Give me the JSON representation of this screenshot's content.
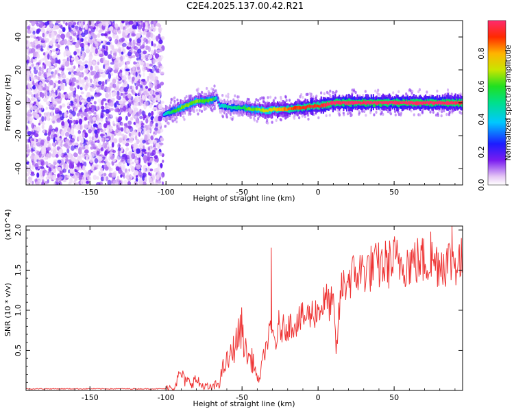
{
  "title": "C2E4.2025.137.00.42.R21",
  "chart_data": [
    {
      "type": "heatmap",
      "name": "spectrogram",
      "xlabel": "Height of straight line (km)",
      "ylabel": "Frequency (Hz)",
      "xlim": [
        -192,
        95
      ],
      "ylim": [
        -50,
        50
      ],
      "x_ticks": [
        "-150",
        "-100",
        "-50",
        "0",
        "50"
      ],
      "y_ticks": [
        "-40",
        "-20",
        "0",
        "20",
        "40"
      ],
      "colorbar": {
        "label": "Normalized spectral amplitude",
        "range": [
          0.0,
          1.0
        ],
        "ticks": [
          "0.0",
          "0.2",
          "0.4",
          "0.6",
          "0.8"
        ]
      },
      "noise_region_x": [
        -192,
        -102
      ],
      "signal_ridge": {
        "x": [
          -102,
          -95,
          -90,
          -85,
          -80,
          -75,
          -70,
          -67,
          -65,
          -62,
          -58,
          -55,
          -50,
          -45,
          -40,
          -35,
          -30,
          -25,
          -20,
          -15,
          -10,
          -5,
          0,
          5,
          10,
          15,
          20,
          30,
          40,
          50,
          60,
          70,
          80,
          90,
          95
        ],
        "frequency": [
          -7,
          -5,
          -3,
          -1,
          1,
          1,
          2,
          3,
          -2,
          -2,
          -3,
          -3,
          -3,
          -4,
          -4,
          -5,
          -4,
          -4,
          -4,
          -3,
          -3,
          -2,
          -2,
          -1,
          0,
          0,
          0,
          0,
          0,
          0,
          0,
          0,
          0,
          0,
          0
        ],
        "amplitude": [
          0.35,
          0.55,
          0.6,
          0.6,
          0.6,
          0.55,
          0.6,
          0.3,
          0.35,
          0.4,
          0.45,
          0.45,
          0.5,
          0.6,
          0.6,
          0.7,
          0.7,
          0.75,
          0.8,
          0.85,
          0.85,
          0.9,
          0.85,
          0.95,
          0.95,
          0.95,
          0.95,
          0.95,
          0.95,
          0.95,
          0.95,
          0.95,
          0.95,
          0.95,
          0.9
        ]
      }
    },
    {
      "type": "line",
      "name": "snr",
      "xlabel": "Height of straight line (km)",
      "ylabel": "SNR (10 * v/v)",
      "y_multiplier": "(x10^4)",
      "xlim": [
        -192,
        95
      ],
      "ylim": [
        0,
        2.05
      ],
      "x_ticks": [
        "-150",
        "-100",
        "-50",
        "0",
        "50"
      ],
      "y_ticks": [
        "0.5",
        "1.0",
        "1.5",
        "2.0"
      ],
      "color": "#ee3333",
      "x": [
        -192,
        -150,
        -100,
        -95,
        -92,
        -90,
        -88,
        -85,
        -80,
        -78,
        -75,
        -70,
        -65,
        -62,
        -60,
        -58,
        -55,
        -52,
        -50,
        -48,
        -45,
        -42,
        -40,
        -38,
        -35,
        -32,
        -30,
        -28,
        -25,
        -20,
        -15,
        -10,
        -5,
        0,
        5,
        10,
        12,
        15,
        20,
        25,
        30,
        40,
        50,
        60,
        70,
        80,
        90,
        95
      ],
      "y": [
        0.02,
        0.02,
        0.02,
        0.05,
        0.15,
        0.22,
        0.12,
        0.1,
        0.13,
        0.08,
        0.05,
        0.02,
        0.1,
        0.3,
        0.35,
        0.4,
        0.55,
        0.7,
        0.8,
        0.5,
        0.4,
        0.35,
        0.1,
        0.2,
        0.5,
        0.7,
        0.72,
        0.6,
        0.75,
        0.8,
        0.85,
        0.9,
        0.95,
        1.0,
        1.12,
        1.05,
        0.48,
        1.25,
        1.4,
        1.45,
        1.5,
        1.55,
        1.6,
        1.6,
        1.62,
        1.6,
        1.62,
        1.6
      ],
      "spikes": [
        {
          "x": -31,
          "y": 1.78
        },
        {
          "x": -26,
          "y": 1.0
        },
        {
          "x": 50,
          "y": 1.92
        },
        {
          "x": 74,
          "y": 1.98
        },
        {
          "x": 88,
          "y": 2.05
        }
      ]
    }
  ]
}
